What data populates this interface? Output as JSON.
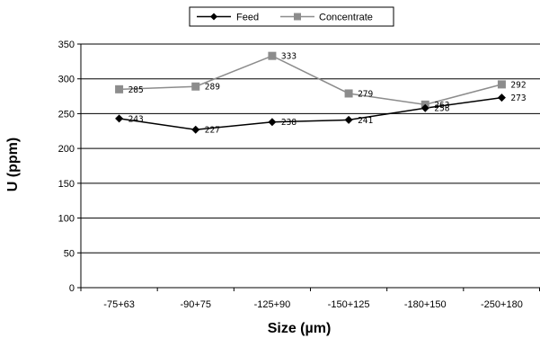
{
  "chart_data": {
    "type": "line",
    "categories": [
      "-75+63",
      "-90+75",
      "-125+90",
      "-150+125",
      "-180+150",
      "-250+180"
    ],
    "series": [
      {
        "name": "Feed",
        "values": [
          243,
          227,
          238,
          241,
          258,
          273
        ],
        "color": "#000000",
        "marker": "diamond"
      },
      {
        "name": "Concentrate",
        "values": [
          285,
          289,
          333,
          279,
          263,
          292
        ],
        "color": "#8c8c8c",
        "marker": "square"
      }
    ],
    "data_labels": {
      "feed": [
        "243",
        "227",
        "238",
        "241",
        "258",
        "273"
      ],
      "concentrate": [
        "285",
        "289",
        "333",
        "279",
        "263",
        "292"
      ]
    },
    "xlabel": "Size (µm)",
    "ylabel": "U (ppm)",
    "ylim": [
      0,
      350
    ],
    "yticks": [
      "0",
      "50",
      "100",
      "150",
      "200",
      "250",
      "300",
      "350"
    ],
    "grid": "horizontal",
    "legend": "top-center"
  }
}
